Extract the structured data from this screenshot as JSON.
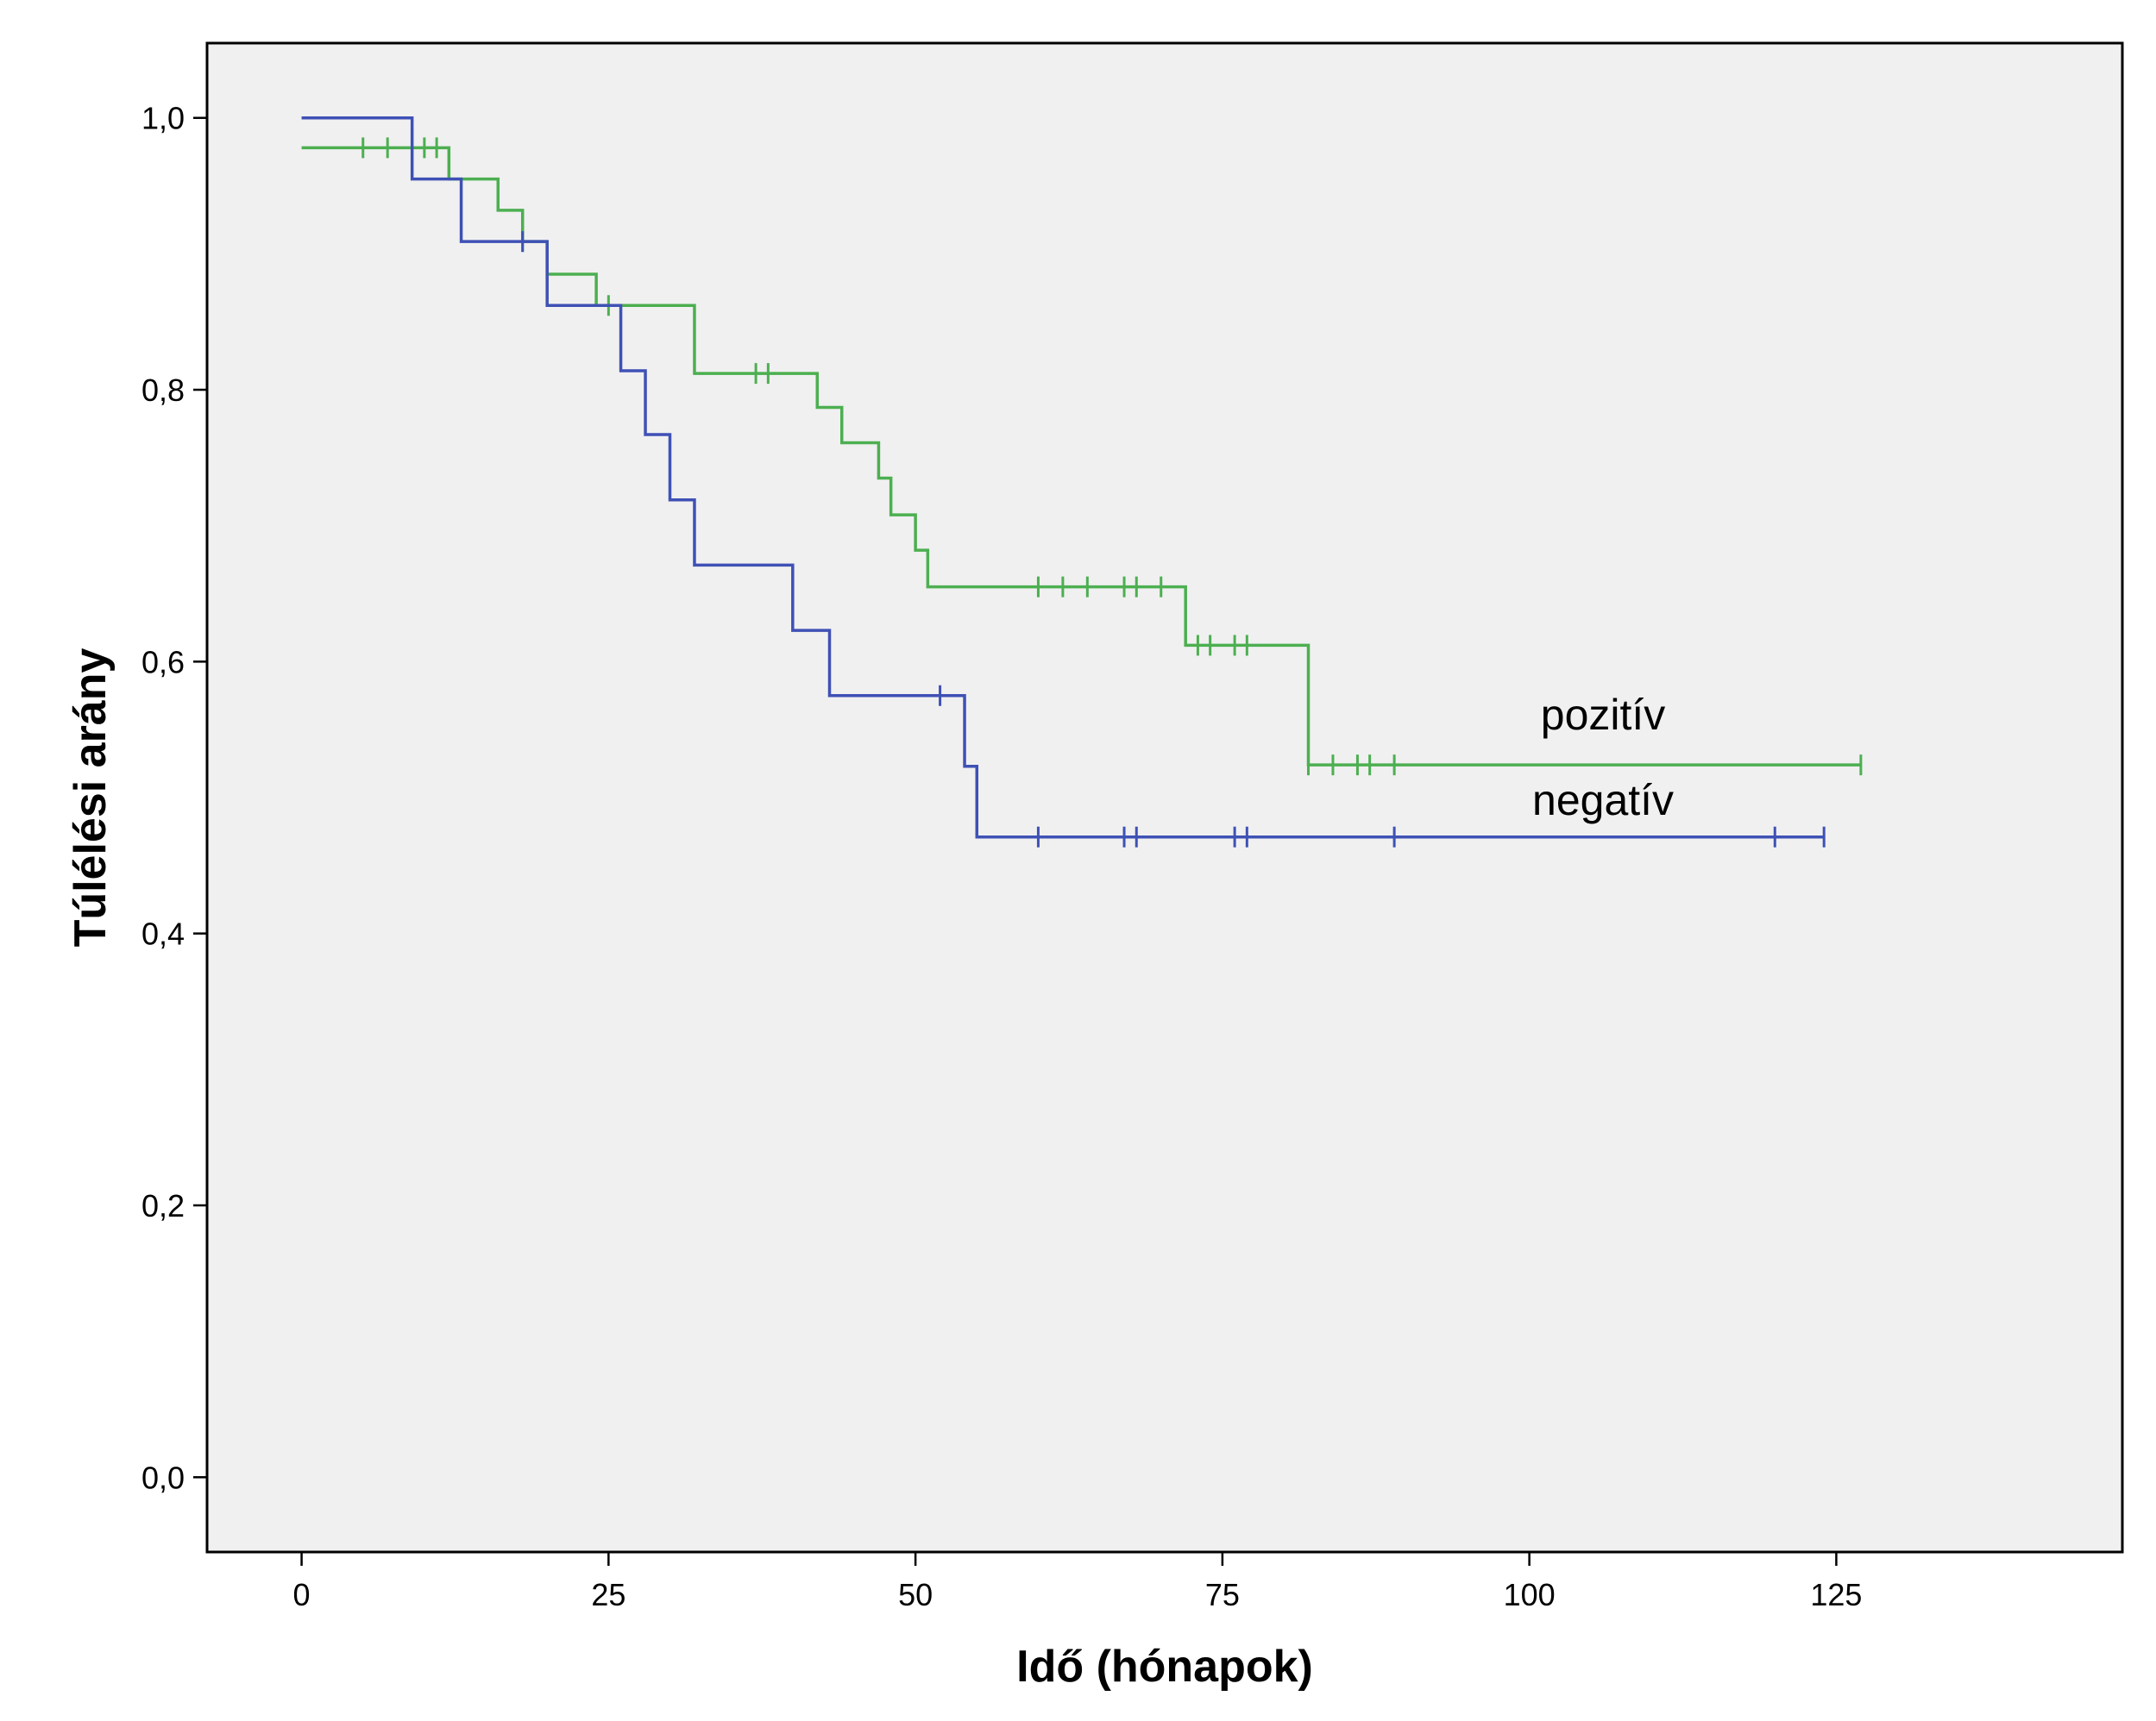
{
  "chart_data": {
    "type": "line",
    "step": true,
    "xlabel": "Idő (hónapok)",
    "ylabel": "Túlélési arány",
    "xlim": [
      -7.7,
      148.3
    ],
    "ylim": [
      -0.055,
      1.055
    ],
    "xticks": [
      0,
      25,
      50,
      75,
      100,
      125
    ],
    "xtick_labels": [
      "0",
      "25",
      "50",
      "75",
      "100",
      "125"
    ],
    "yticks": [
      0,
      0.2,
      0.4,
      0.6,
      0.8,
      1.0
    ],
    "ytick_labels": [
      "0,0",
      "0,2",
      "0,4",
      "0,6",
      "0,8",
      "1,0"
    ],
    "grid": false,
    "background": "#f0f0f0",
    "series": [
      {
        "name": "pozitív",
        "color": "#4caf50",
        "steps": [
          [
            0,
            0.978
          ],
          [
            12,
            0.955
          ],
          [
            16,
            0.932
          ],
          [
            18,
            0.909
          ],
          [
            20,
            0.885
          ],
          [
            24,
            0.862
          ],
          [
            32,
            0.812
          ],
          [
            42,
            0.787
          ],
          [
            44,
            0.761
          ],
          [
            47,
            0.735
          ],
          [
            48,
            0.708
          ],
          [
            50,
            0.682
          ],
          [
            51,
            0.655
          ],
          [
            72,
            0.612
          ],
          [
            82,
            0.524
          ]
        ],
        "end": 127,
        "censored": [
          [
            5,
            0.978
          ],
          [
            7,
            0.978
          ],
          [
            10,
            0.978
          ],
          [
            11,
            0.978
          ],
          [
            18,
            0.909
          ],
          [
            25,
            0.862
          ],
          [
            37,
            0.812
          ],
          [
            38,
            0.812
          ],
          [
            60,
            0.655
          ],
          [
            62,
            0.655
          ],
          [
            64,
            0.655
          ],
          [
            67,
            0.655
          ],
          [
            68,
            0.655
          ],
          [
            70,
            0.655
          ],
          [
            73,
            0.612
          ],
          [
            74,
            0.612
          ],
          [
            76,
            0.612
          ],
          [
            77,
            0.612
          ],
          [
            82,
            0.524
          ],
          [
            84,
            0.524
          ],
          [
            86,
            0.524
          ],
          [
            87,
            0.524
          ],
          [
            89,
            0.524
          ],
          [
            127,
            0.524
          ]
        ]
      },
      {
        "name": "negatív",
        "color": "#3f51b5",
        "steps": [
          [
            0,
            1.0
          ],
          [
            9,
            0.955
          ],
          [
            13,
            0.909
          ],
          [
            20,
            0.862
          ],
          [
            26,
            0.814
          ],
          [
            28,
            0.767
          ],
          [
            30,
            0.719
          ],
          [
            32,
            0.671
          ],
          [
            40,
            0.623
          ],
          [
            43,
            0.575
          ],
          [
            54,
            0.523
          ],
          [
            55,
            0.471
          ]
        ],
        "end": 124,
        "censored": [
          [
            18,
            0.909
          ],
          [
            52,
            0.575
          ],
          [
            60,
            0.471
          ],
          [
            67,
            0.471
          ],
          [
            68,
            0.471
          ],
          [
            76,
            0.471
          ],
          [
            77,
            0.471
          ],
          [
            89,
            0.471
          ],
          [
            120,
            0.471
          ],
          [
            124,
            0.471
          ]
        ]
      }
    ],
    "annotations": [
      {
        "text": "pozitív",
        "x": 106,
        "y": 0.561
      },
      {
        "text": "negatív",
        "x": 106,
        "y": 0.498
      }
    ]
  }
}
